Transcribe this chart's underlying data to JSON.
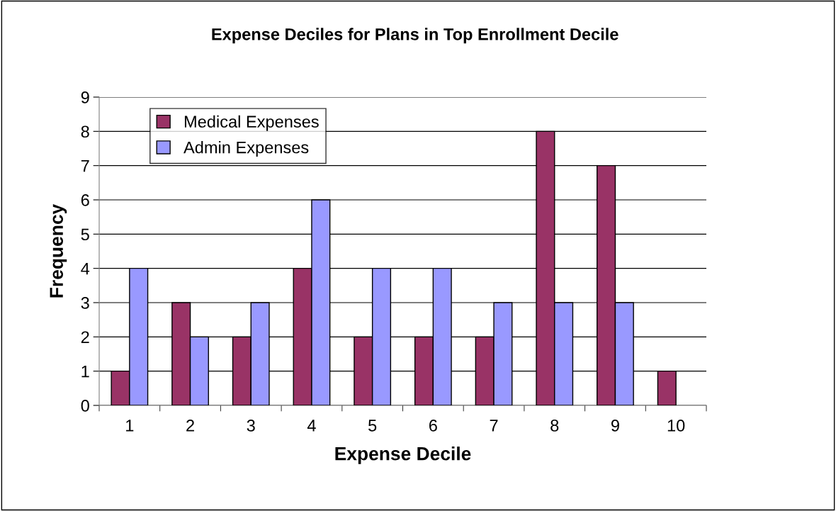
{
  "chart_data": {
    "type": "bar",
    "title": "Expense Deciles for Plans in Top Enrollment Decile",
    "xlabel": "Expense Decile",
    "ylabel": "Frequency",
    "categories": [
      "1",
      "2",
      "3",
      "4",
      "5",
      "6",
      "7",
      "8",
      "9",
      "10"
    ],
    "series": [
      {
        "name": "Medical Expenses",
        "color": "#993366",
        "values": [
          1,
          3,
          2,
          4,
          2,
          2,
          2,
          8,
          7,
          1
        ]
      },
      {
        "name": "Admin Expenses",
        "color": "#9999ff",
        "values": [
          4,
          2,
          3,
          6,
          4,
          4,
          3,
          3,
          3,
          null
        ]
      }
    ],
    "ylim": [
      0,
      9
    ],
    "yticks": [
      0,
      1,
      2,
      3,
      4,
      5,
      6,
      7,
      8,
      9
    ],
    "grid": "y",
    "legend": "top left"
  }
}
